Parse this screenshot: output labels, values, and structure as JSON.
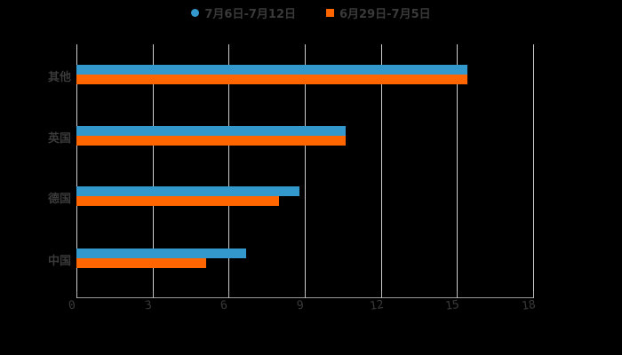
{
  "chart_data": {
    "type": "bar",
    "orientation": "horizontal",
    "title": "",
    "xlabel": "",
    "ylabel": "",
    "categories": [
      "其他",
      "英国",
      "德国",
      "中国"
    ],
    "series": [
      {
        "name": "7月6日-7月12日",
        "color": "#3399cc",
        "marker": "circle",
        "values": [
          15.4,
          10.6,
          8.8,
          6.7
        ]
      },
      {
        "name": "6月29日-7月5日",
        "color": "#ff6600",
        "marker": "square",
        "values": [
          15.4,
          10.6,
          8.0,
          5.1
        ]
      }
    ],
    "xlim": [
      0,
      18
    ],
    "xticks": [
      "0",
      "3",
      "6",
      "9",
      "12",
      "15",
      "18"
    ],
    "grid": true,
    "legend_position": "top"
  },
  "legend": {
    "items": [
      {
        "label": "7月6日-7月12日",
        "color": "#3399cc"
      },
      {
        "label": "6月29日-7月5日",
        "color": "#ff6600"
      }
    ]
  }
}
